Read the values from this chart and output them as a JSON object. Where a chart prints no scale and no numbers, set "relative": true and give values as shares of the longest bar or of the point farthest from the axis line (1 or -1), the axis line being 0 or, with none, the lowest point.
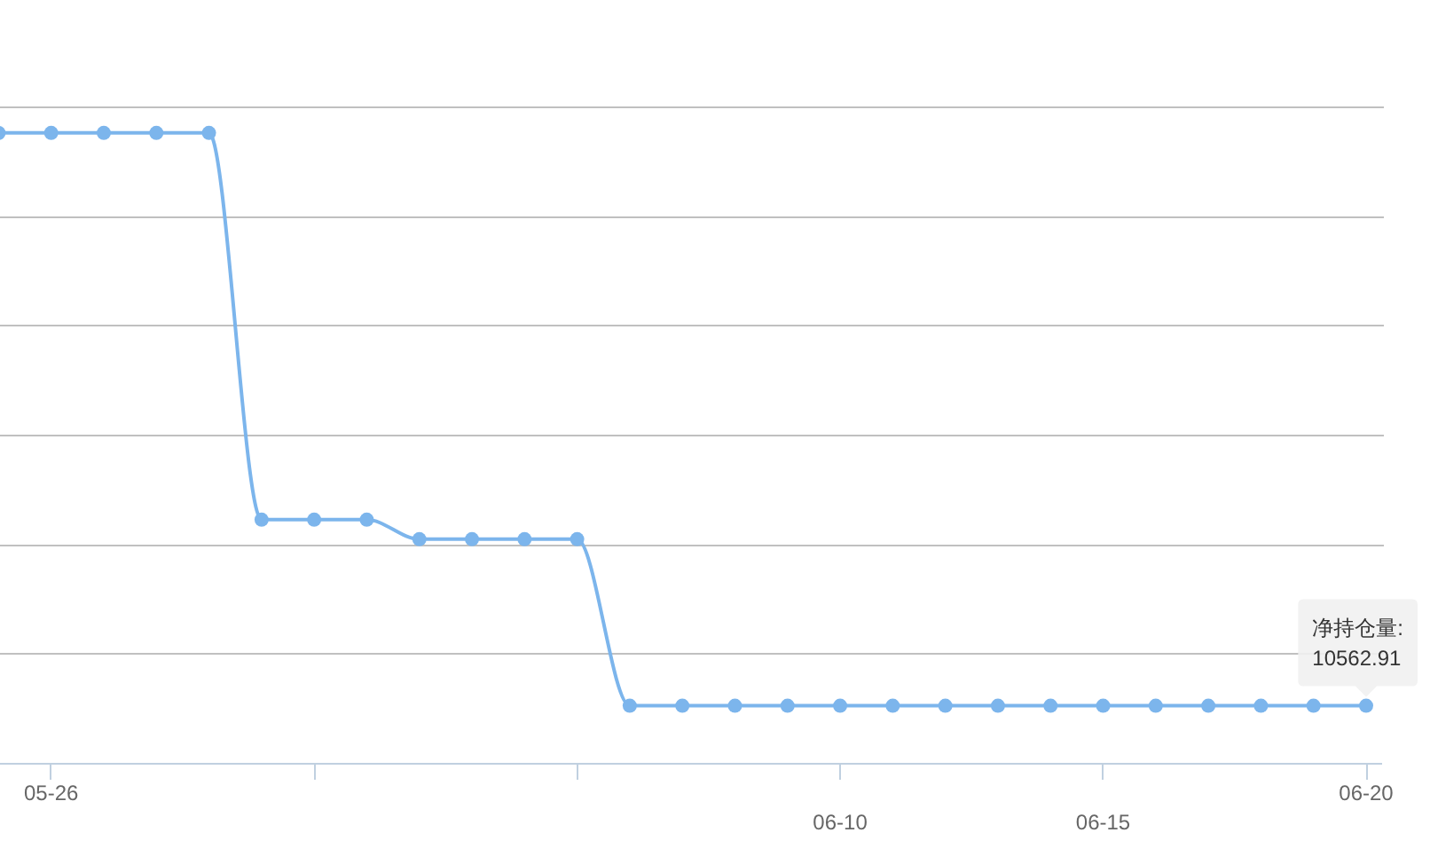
{
  "chart_data": {
    "type": "line",
    "relative": true,
    "categories": [
      null,
      "05-26",
      null,
      null,
      null,
      null,
      null,
      null,
      null,
      null,
      null,
      null,
      null,
      null,
      null,
      null,
      "06-10",
      null,
      null,
      null,
      null,
      "06-15",
      null,
      null,
      null,
      null,
      "06-20"
    ],
    "series": [
      {
        "color": "#7cb5ec",
        "values": [
          1,
          1,
          1,
          1,
          1,
          0.387,
          0.387,
          0.387,
          0.356,
          0.356,
          0.356,
          0.356,
          0.092,
          0.092,
          0.092,
          0.092,
          0.092,
          0.092,
          0.092,
          0.092,
          0.092,
          0.092,
          0.092,
          0.092,
          0.092,
          0.092,
          0.092
        ]
      }
    ],
    "marker": "circle",
    "grid": "y",
    "tick_labels": "x",
    "annotations": [
      "净持仓量:\n10562.91"
    ]
  }
}
